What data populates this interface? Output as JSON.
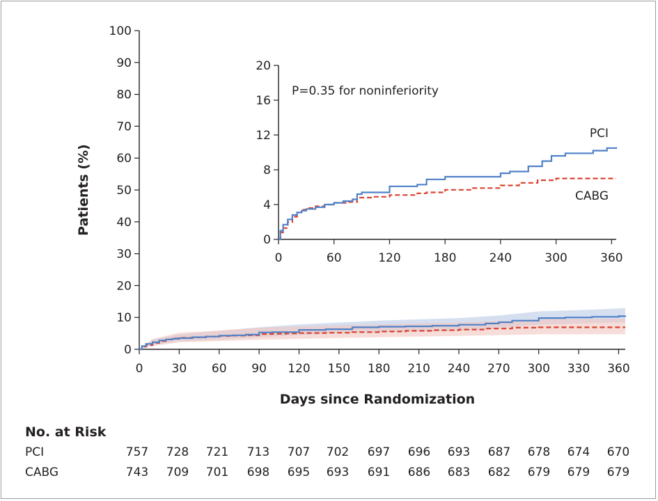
{
  "chart_data": [
    {
      "type": "line",
      "panel": "main",
      "xlabel": "Days since Randomization",
      "ylabel": "Patients (%)",
      "xlim": [
        0,
        365
      ],
      "ylim": [
        0,
        100
      ],
      "xticks": [
        0,
        30,
        60,
        90,
        120,
        150,
        180,
        210,
        240,
        270,
        300,
        330,
        360
      ],
      "yticks": [
        0,
        10,
        20,
        30,
        40,
        50,
        60,
        70,
        80,
        90,
        100
      ],
      "series": [
        {
          "name": "PCI",
          "color": "#4f81c7",
          "style": "solid",
          "band_color": "#b9c9e6",
          "points": [
            [
              0,
              0
            ],
            [
              2,
              1.0
            ],
            [
              5,
              1.7
            ],
            [
              10,
              2.2
            ],
            [
              15,
              2.8
            ],
            [
              20,
              3.1
            ],
            [
              25,
              3.3
            ],
            [
              30,
              3.5
            ],
            [
              40,
              3.8
            ],
            [
              50,
              4.0
            ],
            [
              60,
              4.3
            ],
            [
              70,
              4.4
            ],
            [
              80,
              4.6
            ],
            [
              90,
              5.3
            ],
            [
              100,
              5.4
            ],
            [
              110,
              5.4
            ],
            [
              120,
              6.1
            ],
            [
              140,
              6.3
            ],
            [
              160,
              6.9
            ],
            [
              180,
              7.1
            ],
            [
              200,
              7.2
            ],
            [
              220,
              7.4
            ],
            [
              240,
              7.7
            ],
            [
              260,
              8.1
            ],
            [
              270,
              8.5
            ],
            [
              280,
              9.0
            ],
            [
              300,
              9.8
            ],
            [
              320,
              10.0
            ],
            [
              340,
              10.2
            ],
            [
              360,
              10.4
            ],
            [
              365,
              10.6
            ]
          ],
          "upper": [
            [
              0,
              0
            ],
            [
              10,
              3.0
            ],
            [
              30,
              4.7
            ],
            [
              60,
              5.8
            ],
            [
              90,
              6.9
            ],
            [
              120,
              7.8
            ],
            [
              180,
              9.0
            ],
            [
              240,
              9.8
            ],
            [
              270,
              10.6
            ],
            [
              300,
              11.9
            ],
            [
              330,
              12.3
            ],
            [
              365,
              12.9
            ]
          ],
          "lower": [
            [
              0,
              0
            ],
            [
              10,
              1.4
            ],
            [
              30,
              2.5
            ],
            [
              60,
              3.0
            ],
            [
              90,
              3.8
            ],
            [
              120,
              4.5
            ],
            [
              180,
              5.4
            ],
            [
              240,
              5.8
            ],
            [
              270,
              6.6
            ],
            [
              300,
              7.7
            ],
            [
              330,
              8.1
            ],
            [
              365,
              8.5
            ]
          ]
        },
        {
          "name": "CABG",
          "color": "#d9412f",
          "style": "dashed",
          "band_color": "#f1c7c0",
          "points": [
            [
              0,
              0
            ],
            [
              2,
              0.8
            ],
            [
              5,
              1.3
            ],
            [
              10,
              2.0
            ],
            [
              15,
              2.6
            ],
            [
              20,
              3.1
            ],
            [
              25,
              3.4
            ],
            [
              30,
              3.6
            ],
            [
              40,
              3.8
            ],
            [
              50,
              4.0
            ],
            [
              60,
              4.2
            ],
            [
              70,
              4.3
            ],
            [
              80,
              4.4
            ],
            [
              90,
              4.8
            ],
            [
              100,
              4.9
            ],
            [
              110,
              5.0
            ],
            [
              120,
              5.1
            ],
            [
              140,
              5.2
            ],
            [
              160,
              5.4
            ],
            [
              180,
              5.6
            ],
            [
              200,
              5.8
            ],
            [
              220,
              6.0
            ],
            [
              240,
              6.2
            ],
            [
              260,
              6.5
            ],
            [
              280,
              6.8
            ],
            [
              300,
              6.9
            ],
            [
              365,
              6.9
            ]
          ],
          "upper": [
            [
              0,
              0
            ],
            [
              10,
              3.2
            ],
            [
              30,
              5.2
            ],
            [
              60,
              5.9
            ],
            [
              90,
              6.8
            ],
            [
              120,
              7.2
            ],
            [
              180,
              7.8
            ],
            [
              240,
              8.4
            ],
            [
              300,
              9.4
            ],
            [
              365,
              9.6
            ]
          ],
          "lower": [
            [
              0,
              0
            ],
            [
              10,
              1.0
            ],
            [
              30,
              2.2
            ],
            [
              60,
              2.6
            ],
            [
              90,
              3.0
            ],
            [
              120,
              3.3
            ],
            [
              180,
              3.8
            ],
            [
              240,
              4.2
            ],
            [
              300,
              4.7
            ],
            [
              365,
              4.7
            ]
          ]
        }
      ],
      "risk_table": {
        "title": "No. at Risk",
        "rows": [
          {
            "label": "PCI",
            "values": [
              "757",
              "728",
              "721",
              "713",
              "707",
              "702",
              "697",
              "696",
              "693",
              "687",
              "678",
              "674",
              "670"
            ]
          },
          {
            "label": "CABG",
            "values": [
              "743",
              "709",
              "701",
              "698",
              "695",
              "693",
              "691",
              "686",
              "683",
              "682",
              "679",
              "679",
              "679"
            ]
          }
        ]
      }
    },
    {
      "type": "line",
      "panel": "inset",
      "xlim": [
        0,
        365
      ],
      "ylim": [
        0,
        20
      ],
      "xticks": [
        0,
        60,
        120,
        180,
        240,
        300,
        360
      ],
      "yticks": [
        0,
        4,
        8,
        12,
        16,
        20
      ],
      "annotation": "P=0.35 for noninferiority",
      "series": [
        {
          "name": "PCI",
          "color": "#4f81c7",
          "style": "solid",
          "points": [
            [
              0,
              0
            ],
            [
              2,
              1.0
            ],
            [
              5,
              1.7
            ],
            [
              10,
              2.3
            ],
            [
              15,
              2.8
            ],
            [
              20,
              3.1
            ],
            [
              25,
              3.3
            ],
            [
              30,
              3.5
            ],
            [
              40,
              3.7
            ],
            [
              50,
              4.0
            ],
            [
              60,
              4.2
            ],
            [
              70,
              4.4
            ],
            [
              80,
              4.6
            ],
            [
              85,
              5.2
            ],
            [
              90,
              5.4
            ],
            [
              110,
              5.4
            ],
            [
              120,
              6.1
            ],
            [
              150,
              6.3
            ],
            [
              160,
              6.9
            ],
            [
              180,
              7.2
            ],
            [
              210,
              7.2
            ],
            [
              240,
              7.6
            ],
            [
              250,
              7.8
            ],
            [
              270,
              8.4
            ],
            [
              285,
              9.0
            ],
            [
              295,
              9.6
            ],
            [
              310,
              9.9
            ],
            [
              340,
              10.2
            ],
            [
              355,
              10.5
            ],
            [
              365,
              10.6
            ]
          ]
        },
        {
          "name": "CABG",
          "color": "#d9412f",
          "style": "dashed",
          "points": [
            [
              0,
              0
            ],
            [
              2,
              0.8
            ],
            [
              5,
              1.3
            ],
            [
              10,
              2.0
            ],
            [
              15,
              2.6
            ],
            [
              20,
              3.1
            ],
            [
              25,
              3.4
            ],
            [
              30,
              3.6
            ],
            [
              40,
              3.8
            ],
            [
              50,
              4.0
            ],
            [
              60,
              4.2
            ],
            [
              75,
              4.3
            ],
            [
              85,
              4.8
            ],
            [
              100,
              4.9
            ],
            [
              120,
              5.1
            ],
            [
              150,
              5.3
            ],
            [
              160,
              5.4
            ],
            [
              180,
              5.7
            ],
            [
              210,
              5.9
            ],
            [
              240,
              6.2
            ],
            [
              260,
              6.5
            ],
            [
              280,
              6.8
            ],
            [
              300,
              7.0
            ],
            [
              365,
              7.0
            ]
          ]
        }
      ]
    }
  ]
}
